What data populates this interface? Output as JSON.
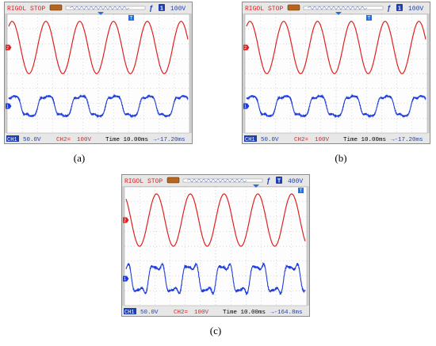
{
  "colors": {
    "ch1": "#1e3cdc",
    "ch2": "#e02020",
    "screen_bg": "#fdfdfd",
    "grid": "#9aa0a6",
    "bar_bg": "#e7e7e7",
    "frame": "#8c8c8c"
  },
  "panels": [
    {
      "id": "a",
      "label": "(a)",
      "top_bar": {
        "brand": "RIGOL",
        "status": "STOP",
        "trigger_icon": "lightning-icon",
        "trigger_label": "ƒ",
        "info_label": "1",
        "level": "100V"
      },
      "bottom_bar": {
        "ch1": "CH1",
        "ch1_value": "50.0V",
        "ch2": "CH2=",
        "ch2_value": "100V",
        "time": "Time 10.00ms",
        "offset": "→-17.20ms"
      },
      "waveforms": {
        "ch2": "sine",
        "ch1": "distorted_small"
      }
    },
    {
      "id": "b",
      "label": "(b)",
      "top_bar": {
        "brand": "RIGOL",
        "status": "STOP",
        "trigger_icon": "lightning-icon",
        "trigger_label": "ƒ",
        "info_label": "1",
        "level": "100V"
      },
      "bottom_bar": {
        "ch1": "CH1",
        "ch1_value": "50.0V",
        "ch2": "CH2=",
        "ch2_value": "100V",
        "time": "Time 10.00ms",
        "offset": "→-17.20ms"
      },
      "waveforms": {
        "ch2": "sine",
        "ch1": "distorted_small"
      }
    },
    {
      "id": "c",
      "label": "(c)",
      "top_bar": {
        "brand": "RIGOL",
        "status": "STOP",
        "trigger_icon": "lightning-icon",
        "trigger_label": "ƒ",
        "info_label": "T",
        "level": "400V"
      },
      "bottom_bar": {
        "ch1": "CH1",
        "ch1_value": "50.0V",
        "ch2": "CH2=",
        "ch2_value": "100V",
        "time": "Time 10.00ms",
        "offset": "→-164.8ms"
      },
      "waveforms": {
        "ch2": "sine",
        "ch1": "distorted_large"
      }
    }
  ]
}
